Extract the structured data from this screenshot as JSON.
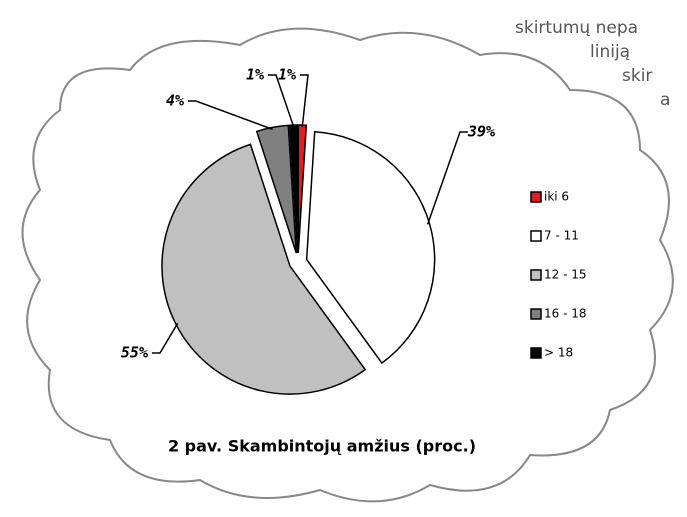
{
  "background_text": [
    "skirtumų nepa",
    "liniją",
    "skir",
    "a"
  ],
  "chart_data": {
    "type": "pie",
    "title": "2 pav. Skambintojų amžius (proc.)",
    "categories": [
      "iki 6",
      "7 - 11",
      "12 - 15",
      "16 - 18",
      "> 18"
    ],
    "values": [
      1,
      39,
      55,
      4,
      1
    ],
    "value_labels": [
      "1%",
      "39%",
      "55%",
      "4%",
      "1%"
    ],
    "colors": [
      "#e31b23",
      "#ffffff",
      "#c0c0c0",
      "#808080",
      "#000000"
    ],
    "legend": "right"
  }
}
